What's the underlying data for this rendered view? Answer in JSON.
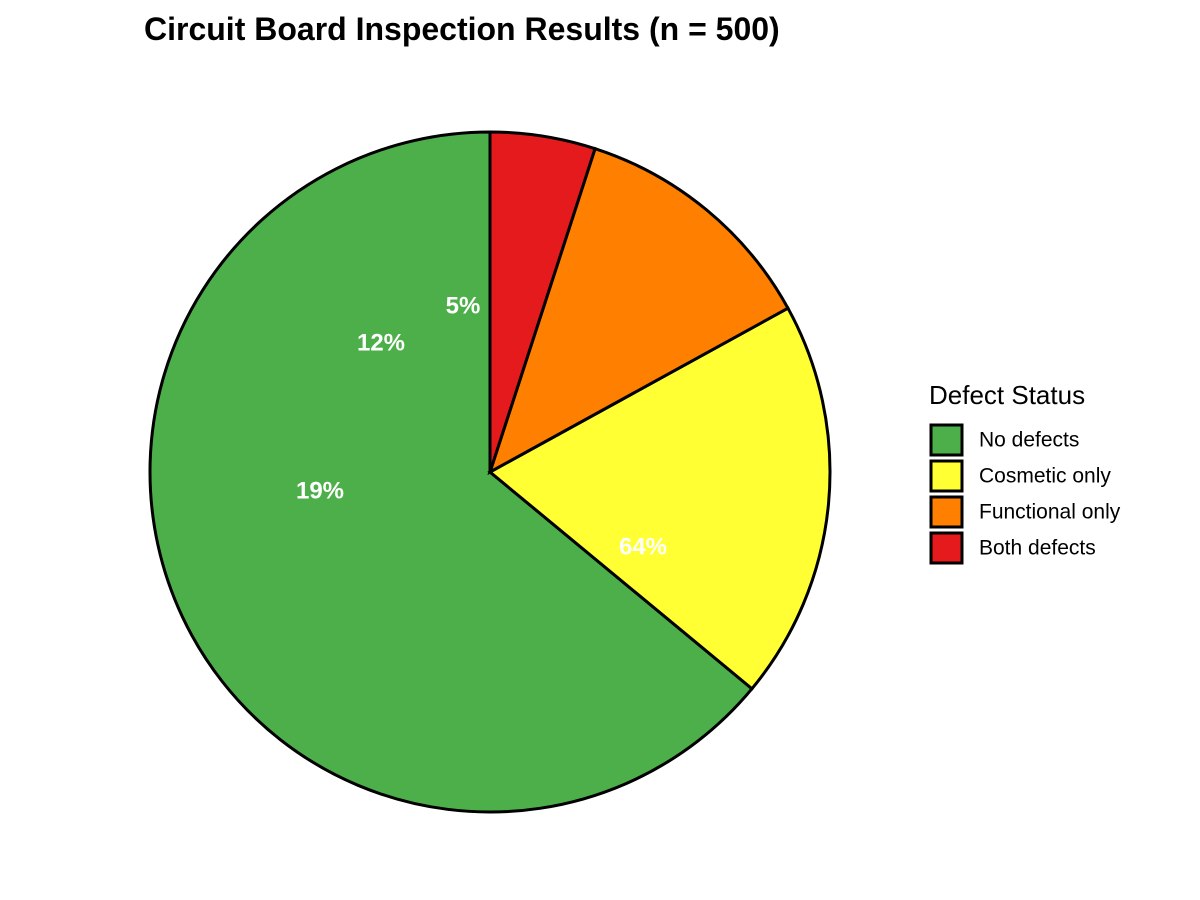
{
  "chart_data": {
    "type": "pie",
    "title": "Circuit Board Inspection Results (n = 500)",
    "categories": [
      "No defects",
      "Cosmetic only",
      "Functional only",
      "Both defects"
    ],
    "values": [
      320,
      95,
      60,
      25
    ],
    "percent_labels": [
      "64%",
      "19%",
      "12%",
      "5%"
    ],
    "label_order": [
      "5%",
      "12%",
      "19%",
      "64%"
    ],
    "colors": [
      "#4DAF4A",
      "#FFFF33",
      "#FF7F00",
      "#E41A1C"
    ],
    "legend": {
      "title": "Defect Status",
      "placement": "right"
    },
    "direction": "counterclockwise",
    "start": "top"
  }
}
